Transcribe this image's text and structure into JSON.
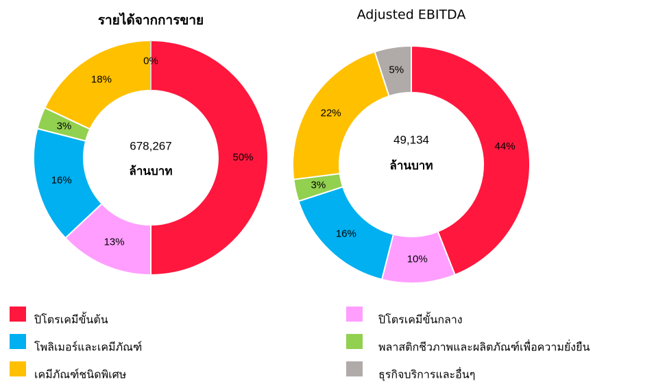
{
  "legend": {
    "labels": [
      "ปิโตรเคมีขั้นต้น",
      "ปิโตรเคมีขั้นกลาง",
      "โพลิเมอร์และเคมีภัณฑ์",
      "พลาสติกชีวภาพและผลิตภัณฑ์เพื่อความยั่งยืน",
      "เคมีภัณฑ์ชนิดพิเศษ",
      "ธุรกิจบริการและอื่นๆ"
    ],
    "colors": [
      "#ff173e",
      "#ff9eff",
      "#00b0f0",
      "#92d050",
      "#ffc000",
      "#b0aaa8"
    ]
  },
  "chart_data": [
    {
      "type": "pie",
      "title": "รายได้จากการขาย",
      "center_value": "678,267",
      "center_unit": "ล้านบาท",
      "values": [
        50,
        13,
        16,
        3,
        18,
        0
      ],
      "value_labels": [
        "50%",
        "13%",
        "16%",
        "3%",
        "18%",
        "0%"
      ]
    },
    {
      "type": "pie",
      "title": "Adjusted EBITDA",
      "center_value": "49,134",
      "center_unit": "ล้านบาท",
      "values": [
        44,
        10,
        16,
        3,
        22,
        5
      ],
      "value_labels": [
        "44%",
        "10%",
        "16%",
        "3%",
        "22%",
        "5%"
      ]
    }
  ]
}
